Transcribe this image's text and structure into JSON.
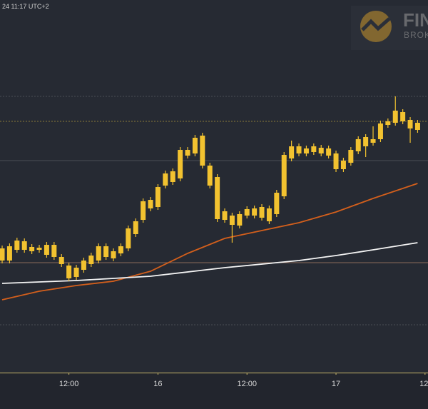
{
  "chart_data": {
    "type": "candlestick",
    "header": "24 11:17 UTC+2",
    "logo_title": "FIN",
    "logo_subtitle": "BROK",
    "color": "#f2c230",
    "xlim": [
      -0.29,
      57.4
    ],
    "ylim": [
      0,
      522
    ],
    "xticks": [
      {
        "value": 9,
        "label": "12:00"
      },
      {
        "value": 21,
        "label": "16"
      },
      {
        "value": 33,
        "label": "12:00"
      },
      {
        "value": 45,
        "label": "17"
      },
      {
        "value": 57,
        "label": "12:"
      }
    ],
    "open": [
      157,
      157,
      172,
      184,
      176,
      172,
      165,
      179,
      162,
      150,
      134,
      144,
      152,
      157,
      177,
      160,
      167,
      174,
      194,
      214,
      242,
      232,
      262,
      267,
      272,
      304,
      307,
      332,
      290,
      274,
      226,
      220,
      206,
      220,
      230,
      232,
      230,
      222,
      247,
      300,
      317,
      307,
      309,
      315,
      314,
      307,
      285,
      294,
      310,
      330,
      322,
      327,
      347,
      350,
      365,
      354,
      350
    ],
    "high": [
      178,
      181,
      189,
      188,
      180,
      179,
      183,
      183,
      166,
      154,
      151,
      161,
      168,
      181,
      181,
      174,
      181,
      206,
      216,
      244,
      246,
      264,
      283,
      286,
      316,
      316,
      333,
      336,
      294,
      278,
      230,
      224,
      226,
      233,
      234,
      236,
      234,
      256,
      309,
      325,
      321,
      318,
      321,
      319,
      318,
      311,
      301,
      316,
      331,
      334,
      345,
      353,
      356,
      387,
      369,
      358,
      354
    ],
    "low": [
      153,
      153,
      168,
      168,
      166,
      168,
      161,
      158,
      148,
      128,
      130,
      140,
      148,
      153,
      158,
      156,
      163,
      170,
      190,
      210,
      226,
      228,
      258,
      263,
      268,
      300,
      303,
      286,
      258,
      211,
      210,
      182,
      202,
      216,
      216,
      213,
      208,
      218,
      243,
      296,
      303,
      303,
      305,
      303,
      300,
      281,
      281,
      290,
      306,
      302,
      318,
      323,
      343,
      346,
      348,
      322,
      336
    ],
    "close": [
      174,
      177,
      185,
      172,
      170,
      175,
      179,
      162,
      152,
      132,
      147,
      157,
      164,
      177,
      162,
      170,
      177,
      202,
      212,
      240,
      230,
      260,
      279,
      282,
      312,
      312,
      329,
      290,
      262,
      215,
      214,
      207,
      222,
      229,
      220,
      217,
      212,
      252,
      305,
      317,
      307,
      314,
      317,
      307,
      304,
      285,
      297,
      312,
      327,
      317,
      327,
      349,
      352,
      367,
      352,
      342,
      340
    ],
    "series": [
      {
        "color": "#d35f1c",
        "x": [
          0,
          5,
          10,
          15,
          20,
          25,
          30,
          35,
          40,
          45,
          50,
          56
        ],
        "values": [
          102,
          114,
          122,
          128,
          142,
          167,
          188,
          199,
          210,
          225,
          244,
          265
        ]
      },
      {
        "color": "#f4f4f4",
        "x": [
          0,
          10,
          20,
          30,
          40,
          45,
          50,
          56
        ],
        "values": [
          125,
          129,
          135,
          147,
          157,
          164,
          172,
          182
        ]
      }
    ]
  }
}
